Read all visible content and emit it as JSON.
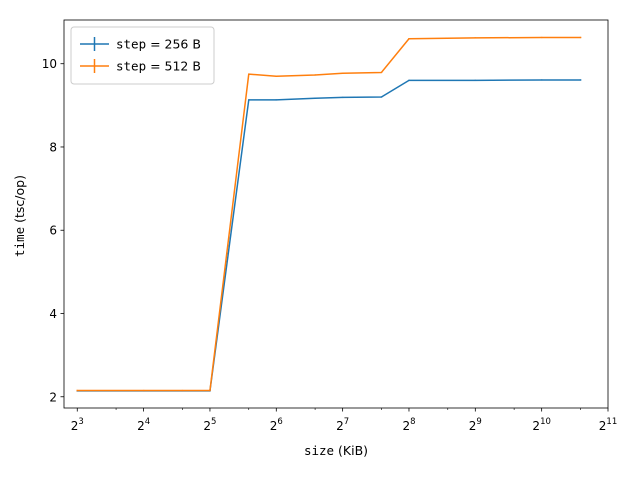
{
  "chart_data": {
    "type": "line",
    "xscale": "log2",
    "xlim": [
      2.8,
      11.0
    ],
    "ylim": [
      1.73,
      11.05
    ],
    "xlabel": {
      "mono": "size",
      "rest": " (KiB)"
    },
    "ylabel": {
      "mono": "time",
      "rest": " (tsc/op)"
    },
    "xticks": [
      {
        "base": "2",
        "exp": "3"
      },
      {
        "base": "2",
        "exp": "4"
      },
      {
        "base": "2",
        "exp": "5"
      },
      {
        "base": "2",
        "exp": "6"
      },
      {
        "base": "2",
        "exp": "7"
      },
      {
        "base": "2",
        "exp": "8"
      },
      {
        "base": "2",
        "exp": "9"
      },
      {
        "base": "2",
        "exp": "10"
      },
      {
        "base": "2",
        "exp": "11"
      }
    ],
    "yticks": [
      "2",
      "4",
      "6",
      "8",
      "10"
    ],
    "legend_position": "top-left",
    "series": [
      {
        "name": "step = 256 B",
        "label_mono": "step",
        "label_rest": " = 256 B",
        "color": "#1f77b4",
        "x": [
          8,
          16,
          24,
          32,
          48,
          64,
          96,
          128,
          192,
          256,
          512,
          1024,
          1536
        ],
        "y": [
          2.14,
          2.14,
          2.14,
          2.14,
          9.13,
          9.13,
          9.17,
          9.19,
          9.2,
          9.6,
          9.6,
          9.61,
          9.61
        ]
      },
      {
        "name": "step = 512 B",
        "label_mono": "step",
        "label_rest": " = 512 B",
        "color": "#ff7f0e",
        "x": [
          8,
          16,
          24,
          32,
          48,
          64,
          96,
          128,
          192,
          256,
          512,
          1024,
          1536
        ],
        "y": [
          2.15,
          2.15,
          2.15,
          2.15,
          9.75,
          9.7,
          9.73,
          9.77,
          9.79,
          10.6,
          10.62,
          10.63,
          10.63
        ]
      }
    ]
  }
}
